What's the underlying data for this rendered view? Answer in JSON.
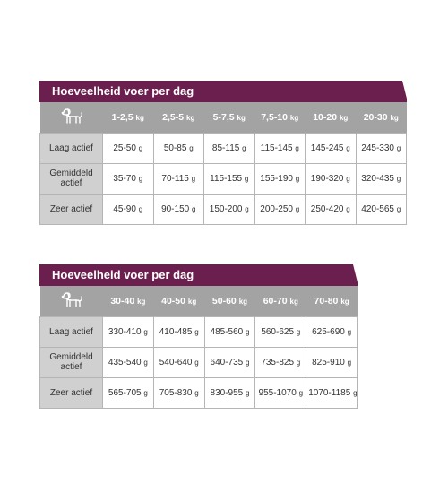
{
  "tables": [
    {
      "title": "Hoeveelheid voer per dag",
      "icon": "dog-icon",
      "headers": [
        {
          "range": "1-2,5",
          "unit": "kg"
        },
        {
          "range": "2,5-5",
          "unit": "kg"
        },
        {
          "range": "5-7,5",
          "unit": "kg"
        },
        {
          "range": "7,5-10",
          "unit": "kg"
        },
        {
          "range": "10-20",
          "unit": "kg"
        },
        {
          "range": "20-30",
          "unit": "kg"
        }
      ],
      "rows": [
        {
          "label": "Laag actief",
          "values": [
            {
              "v": "25-50",
              "u": "g"
            },
            {
              "v": "50-85",
              "u": "g"
            },
            {
              "v": "85-115",
              "u": "g"
            },
            {
              "v": "115-145",
              "u": "g"
            },
            {
              "v": "145-245",
              "u": "g"
            },
            {
              "v": "245-330",
              "u": "g"
            }
          ]
        },
        {
          "label": "Gemiddeld actief",
          "values": [
            {
              "v": "35-70",
              "u": "g"
            },
            {
              "v": "70-115",
              "u": "g"
            },
            {
              "v": "115-155",
              "u": "g"
            },
            {
              "v": "155-190",
              "u": "g"
            },
            {
              "v": "190-320",
              "u": "g"
            },
            {
              "v": "320-435",
              "u": "g"
            }
          ]
        },
        {
          "label": "Zeer actief",
          "values": [
            {
              "v": "45-90",
              "u": "g"
            },
            {
              "v": "90-150",
              "u": "g"
            },
            {
              "v": "150-200",
              "u": "g"
            },
            {
              "v": "200-250",
              "u": "g"
            },
            {
              "v": "250-420",
              "u": "g"
            },
            {
              "v": "420-565",
              "u": "g"
            }
          ]
        }
      ]
    },
    {
      "title": "Hoeveelheid voer per dag",
      "icon": "dog-icon",
      "headers": [
        {
          "range": "30-40",
          "unit": "kg"
        },
        {
          "range": "40-50",
          "unit": "kg"
        },
        {
          "range": "50-60",
          "unit": "kg"
        },
        {
          "range": "60-70",
          "unit": "kg"
        },
        {
          "range": "70-80",
          "unit": "kg"
        }
      ],
      "rows": [
        {
          "label": "Laag actief",
          "values": [
            {
              "v": "330-410",
              "u": "g"
            },
            {
              "v": "410-485",
              "u": "g"
            },
            {
              "v": "485-560",
              "u": "g"
            },
            {
              "v": "560-625",
              "u": "g"
            },
            {
              "v": "625-690",
              "u": "g"
            }
          ]
        },
        {
          "label": "Gemiddeld actief",
          "values": [
            {
              "v": "435-540",
              "u": "g"
            },
            {
              "v": "540-640",
              "u": "g"
            },
            {
              "v": "640-735",
              "u": "g"
            },
            {
              "v": "735-825",
              "u": "g"
            },
            {
              "v": "825-910",
              "u": "g"
            }
          ]
        },
        {
          "label": "Zeer actief",
          "values": [
            {
              "v": "565-705",
              "u": "g"
            },
            {
              "v": "705-830",
              "u": "g"
            },
            {
              "v": "830-955",
              "u": "g"
            },
            {
              "v": "955-1070",
              "u": "g"
            },
            {
              "v": "1070-1185",
              "u": "g"
            }
          ]
        }
      ]
    }
  ],
  "colors": {
    "title_bar": "#6b1f4f",
    "header_row": "#a3a3a3",
    "label_cell": "#d0d0d0",
    "border": "#b5b5b5"
  }
}
